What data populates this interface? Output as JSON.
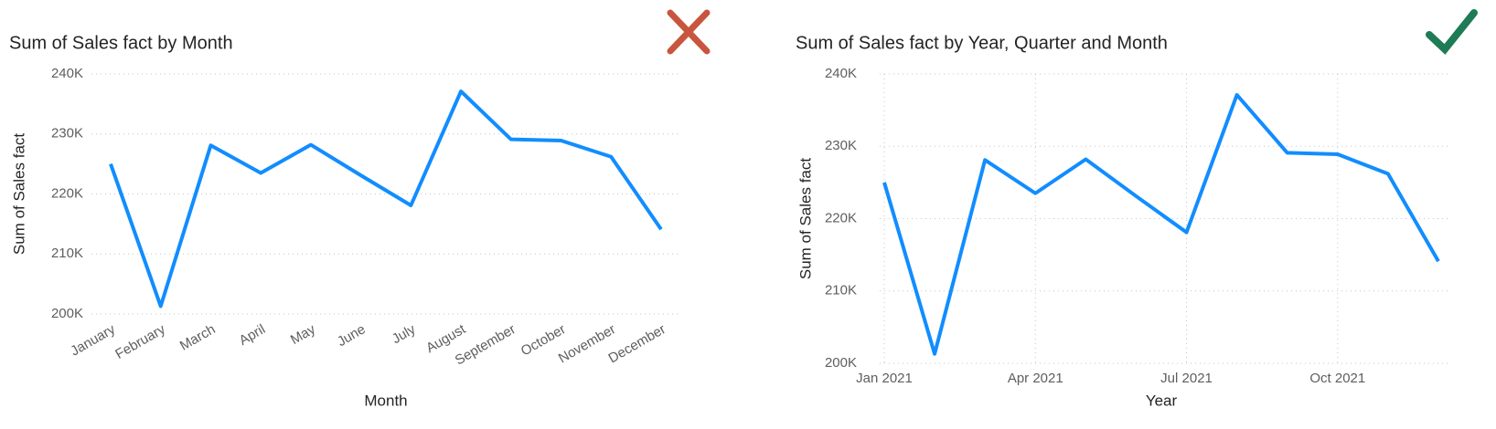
{
  "chart_data": [
    {
      "type": "line",
      "title": "Sum of Sales fact by Month",
      "x_label": "Month",
      "y_label": "Sum of Sales fact",
      "categories": [
        "January",
        "February",
        "March",
        "April",
        "May",
        "June",
        "July",
        "August",
        "September",
        "October",
        "November",
        "December"
      ],
      "series": [
        {
          "name": "Sum of Sales fact",
          "color": "#118dff",
          "values": [
            225000,
            201300,
            228100,
            223500,
            228200,
            223100,
            218100,
            237100,
            229100,
            228900,
            226200,
            214100
          ]
        }
      ],
      "ylim": [
        200000,
        240000
      ],
      "yticks": [
        {
          "value": 200000,
          "label": "200K"
        },
        {
          "value": 210000,
          "label": "210K"
        },
        {
          "value": 220000,
          "label": "220K"
        },
        {
          "value": 230000,
          "label": "230K"
        },
        {
          "value": 240000,
          "label": "240K"
        }
      ],
      "grid": "y"
    },
    {
      "type": "line",
      "title": "Sum of Sales fact by Year, Quarter and Month",
      "x_label": "Year",
      "y_label": "Sum of Sales fact",
      "x": [
        "2021-01",
        "2021-02",
        "2021-03",
        "2021-04",
        "2021-05",
        "2021-06",
        "2021-07",
        "2021-08",
        "2021-09",
        "2021-10",
        "2021-11",
        "2021-12"
      ],
      "series": [
        {
          "name": "Sum of Sales fact",
          "color": "#118dff",
          "values": [
            225000,
            201300,
            228100,
            223500,
            228200,
            223100,
            218100,
            237100,
            229100,
            228900,
            226200,
            214100
          ]
        }
      ],
      "xlim": [
        "2021-01",
        "2021-12"
      ],
      "xticks": [
        {
          "value": "2021-01",
          "label": "Jan 2021"
        },
        {
          "value": "2021-04",
          "label": "Apr 2021"
        },
        {
          "value": "2021-07",
          "label": "Jul 2021"
        },
        {
          "value": "2021-10",
          "label": "Oct 2021"
        }
      ],
      "ylim": [
        200000,
        240000
      ],
      "yticks": [
        {
          "value": 200000,
          "label": "200K"
        },
        {
          "value": 210000,
          "label": "210K"
        },
        {
          "value": 220000,
          "label": "220K"
        },
        {
          "value": 230000,
          "label": "230K"
        },
        {
          "value": 240000,
          "label": "240K"
        }
      ],
      "grid": "both"
    }
  ]
}
